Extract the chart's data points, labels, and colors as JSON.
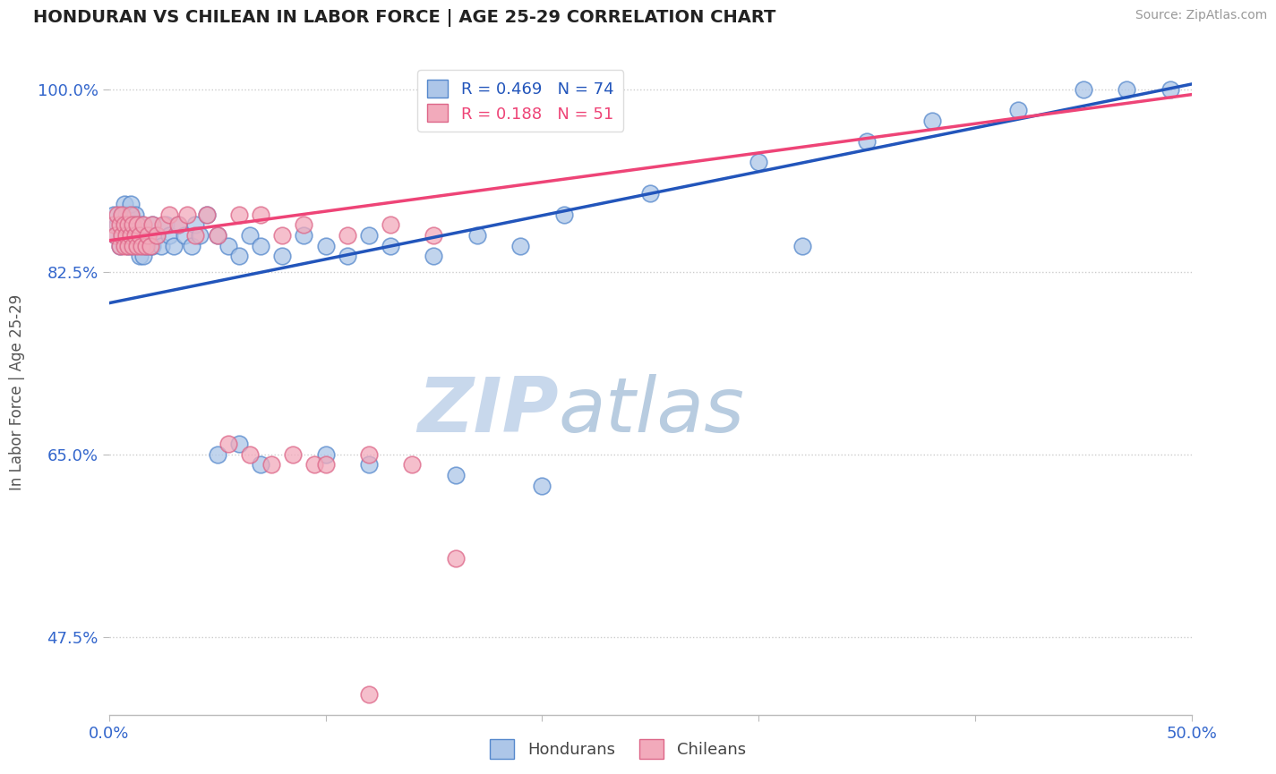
{
  "title": "HONDURAN VS CHILEAN IN LABOR FORCE | AGE 25-29 CORRELATION CHART",
  "source_text": "Source: ZipAtlas.com",
  "ylabel": "In Labor Force | Age 25-29",
  "xmin": 0.0,
  "xmax": 0.5,
  "ymin": 0.4,
  "ymax": 1.02,
  "xtick_positions": [
    0.0,
    0.1,
    0.2,
    0.3,
    0.4,
    0.5
  ],
  "xtick_labels": [
    "0.0%",
    "",
    "",
    "",
    "",
    "50.0%"
  ],
  "ytick_positions": [
    0.475,
    0.65,
    0.825,
    1.0
  ],
  "ytick_labels": [
    "47.5%",
    "65.0%",
    "82.5%",
    "100.0%"
  ],
  "grid_color": "#cccccc",
  "background_color": "#ffffff",
  "honduran_color": "#adc6e8",
  "honduran_edge_color": "#5588cc",
  "chilean_color": "#f2aabb",
  "chilean_edge_color": "#dd6688",
  "honduran_line_color": "#2255bb",
  "chilean_line_color": "#ee4477",
  "legend_R_honduran": "0.469",
  "legend_N_honduran": "74",
  "legend_R_chilean": "0.188",
  "legend_N_chilean": "51",
  "watermark_text1": "ZIP",
  "watermark_text2": "atlas",
  "watermark_color1": "#c8d8ec",
  "watermark_color2": "#b8cce0",
  "legend_label_honduran": "Hondurans",
  "legend_label_chilean": "Chileans",
  "honduran_x": [
    0.002,
    0.003,
    0.004,
    0.005,
    0.006,
    0.006,
    0.007,
    0.007,
    0.008,
    0.008,
    0.009,
    0.009,
    0.01,
    0.01,
    0.01,
    0.011,
    0.011,
    0.012,
    0.012,
    0.013,
    0.013,
    0.014,
    0.014,
    0.015,
    0.015,
    0.016,
    0.016,
    0.017,
    0.018,
    0.019,
    0.02,
    0.02,
    0.022,
    0.024,
    0.026,
    0.028,
    0.03,
    0.032,
    0.035,
    0.038,
    0.04,
    0.042,
    0.045,
    0.05,
    0.055,
    0.06,
    0.065,
    0.07,
    0.08,
    0.09,
    0.1,
    0.11,
    0.12,
    0.13,
    0.15,
    0.17,
    0.19,
    0.21,
    0.25,
    0.3,
    0.35,
    0.38,
    0.42,
    0.45,
    0.47,
    0.49,
    0.05,
    0.06,
    0.07,
    0.1,
    0.12,
    0.16,
    0.2,
    0.32
  ],
  "honduran_y": [
    0.88,
    0.86,
    0.87,
    0.85,
    0.88,
    0.86,
    0.87,
    0.89,
    0.88,
    0.86,
    0.87,
    0.85,
    0.88,
    0.86,
    0.89,
    0.87,
    0.85,
    0.86,
    0.88,
    0.87,
    0.85,
    0.86,
    0.84,
    0.87,
    0.85,
    0.86,
    0.84,
    0.85,
    0.86,
    0.85,
    0.87,
    0.85,
    0.86,
    0.85,
    0.87,
    0.86,
    0.85,
    0.87,
    0.86,
    0.85,
    0.87,
    0.86,
    0.88,
    0.86,
    0.85,
    0.84,
    0.86,
    0.85,
    0.84,
    0.86,
    0.85,
    0.84,
    0.86,
    0.85,
    0.84,
    0.86,
    0.85,
    0.88,
    0.9,
    0.93,
    0.95,
    0.97,
    0.98,
    1.0,
    1.0,
    1.0,
    0.65,
    0.66,
    0.64,
    0.65,
    0.64,
    0.63,
    0.62,
    0.85
  ],
  "chilean_x": [
    0.002,
    0.003,
    0.004,
    0.005,
    0.005,
    0.006,
    0.006,
    0.007,
    0.007,
    0.008,
    0.009,
    0.009,
    0.01,
    0.01,
    0.011,
    0.011,
    0.012,
    0.013,
    0.013,
    0.014,
    0.015,
    0.016,
    0.017,
    0.018,
    0.019,
    0.02,
    0.022,
    0.025,
    0.028,
    0.032,
    0.036,
    0.04,
    0.045,
    0.05,
    0.06,
    0.07,
    0.08,
    0.09,
    0.11,
    0.13,
    0.15,
    0.055,
    0.065,
    0.075,
    0.085,
    0.095,
    0.1,
    0.12,
    0.14,
    0.16,
    0.12
  ],
  "chilean_y": [
    0.87,
    0.86,
    0.88,
    0.87,
    0.85,
    0.86,
    0.88,
    0.87,
    0.85,
    0.86,
    0.87,
    0.85,
    0.88,
    0.86,
    0.87,
    0.85,
    0.86,
    0.87,
    0.85,
    0.86,
    0.85,
    0.87,
    0.85,
    0.86,
    0.85,
    0.87,
    0.86,
    0.87,
    0.88,
    0.87,
    0.88,
    0.86,
    0.88,
    0.86,
    0.88,
    0.88,
    0.86,
    0.87,
    0.86,
    0.87,
    0.86,
    0.66,
    0.65,
    0.64,
    0.65,
    0.64,
    0.64,
    0.65,
    0.64,
    0.55,
    0.42
  ],
  "honduran_trendline_x0": 0.0,
  "honduran_trendline_y0": 0.795,
  "honduran_trendline_x1": 0.5,
  "honduran_trendline_y1": 1.005,
  "chilean_trendline_x0": 0.0,
  "chilean_trendline_y0": 0.855,
  "chilean_trendline_x1": 0.5,
  "chilean_trendline_y1": 0.995
}
